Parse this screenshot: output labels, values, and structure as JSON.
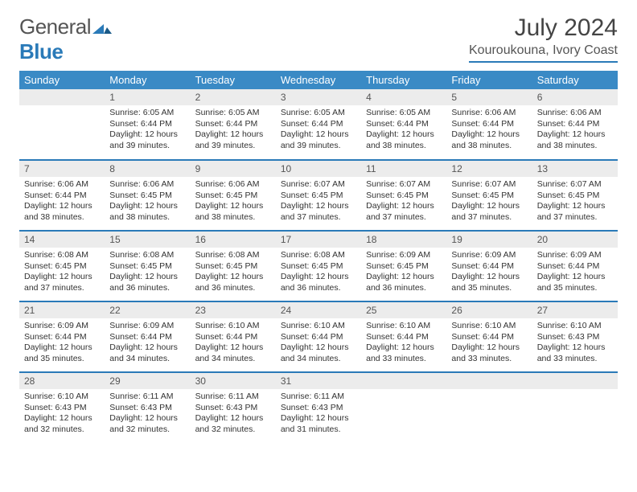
{
  "colors": {
    "header_bg": "#3a8ac5",
    "accent_line": "#2a7ab8",
    "daynum_bg": "#ececec",
    "text": "#333333",
    "muted_text": "#555555",
    "page_bg": "#ffffff"
  },
  "typography": {
    "base_family": "Arial",
    "month_title_pt": 30,
    "location_pt": 16,
    "weekday_pt": 13,
    "body_pt": 10.5
  },
  "logo": {
    "word1": "General",
    "word2": "Blue"
  },
  "title": "July 2024",
  "location": "Kouroukouna, Ivory Coast",
  "weekdays": [
    "Sunday",
    "Monday",
    "Tuesday",
    "Wednesday",
    "Thursday",
    "Friday",
    "Saturday"
  ],
  "weeks": [
    [
      {
        "n": "",
        "sunrise": "",
        "sunset": "",
        "daylight": ""
      },
      {
        "n": "1",
        "sunrise": "6:05 AM",
        "sunset": "6:44 PM",
        "daylight": "12 hours and 39 minutes."
      },
      {
        "n": "2",
        "sunrise": "6:05 AM",
        "sunset": "6:44 PM",
        "daylight": "12 hours and 39 minutes."
      },
      {
        "n": "3",
        "sunrise": "6:05 AM",
        "sunset": "6:44 PM",
        "daylight": "12 hours and 39 minutes."
      },
      {
        "n": "4",
        "sunrise": "6:05 AM",
        "sunset": "6:44 PM",
        "daylight": "12 hours and 38 minutes."
      },
      {
        "n": "5",
        "sunrise": "6:06 AM",
        "sunset": "6:44 PM",
        "daylight": "12 hours and 38 minutes."
      },
      {
        "n": "6",
        "sunrise": "6:06 AM",
        "sunset": "6:44 PM",
        "daylight": "12 hours and 38 minutes."
      }
    ],
    [
      {
        "n": "7",
        "sunrise": "6:06 AM",
        "sunset": "6:44 PM",
        "daylight": "12 hours and 38 minutes."
      },
      {
        "n": "8",
        "sunrise": "6:06 AM",
        "sunset": "6:45 PM",
        "daylight": "12 hours and 38 minutes."
      },
      {
        "n": "9",
        "sunrise": "6:06 AM",
        "sunset": "6:45 PM",
        "daylight": "12 hours and 38 minutes."
      },
      {
        "n": "10",
        "sunrise": "6:07 AM",
        "sunset": "6:45 PM",
        "daylight": "12 hours and 37 minutes."
      },
      {
        "n": "11",
        "sunrise": "6:07 AM",
        "sunset": "6:45 PM",
        "daylight": "12 hours and 37 minutes."
      },
      {
        "n": "12",
        "sunrise": "6:07 AM",
        "sunset": "6:45 PM",
        "daylight": "12 hours and 37 minutes."
      },
      {
        "n": "13",
        "sunrise": "6:07 AM",
        "sunset": "6:45 PM",
        "daylight": "12 hours and 37 minutes."
      }
    ],
    [
      {
        "n": "14",
        "sunrise": "6:08 AM",
        "sunset": "6:45 PM",
        "daylight": "12 hours and 37 minutes."
      },
      {
        "n": "15",
        "sunrise": "6:08 AM",
        "sunset": "6:45 PM",
        "daylight": "12 hours and 36 minutes."
      },
      {
        "n": "16",
        "sunrise": "6:08 AM",
        "sunset": "6:45 PM",
        "daylight": "12 hours and 36 minutes."
      },
      {
        "n": "17",
        "sunrise": "6:08 AM",
        "sunset": "6:45 PM",
        "daylight": "12 hours and 36 minutes."
      },
      {
        "n": "18",
        "sunrise": "6:09 AM",
        "sunset": "6:45 PM",
        "daylight": "12 hours and 36 minutes."
      },
      {
        "n": "19",
        "sunrise": "6:09 AM",
        "sunset": "6:44 PM",
        "daylight": "12 hours and 35 minutes."
      },
      {
        "n": "20",
        "sunrise": "6:09 AM",
        "sunset": "6:44 PM",
        "daylight": "12 hours and 35 minutes."
      }
    ],
    [
      {
        "n": "21",
        "sunrise": "6:09 AM",
        "sunset": "6:44 PM",
        "daylight": "12 hours and 35 minutes."
      },
      {
        "n": "22",
        "sunrise": "6:09 AM",
        "sunset": "6:44 PM",
        "daylight": "12 hours and 34 minutes."
      },
      {
        "n": "23",
        "sunrise": "6:10 AM",
        "sunset": "6:44 PM",
        "daylight": "12 hours and 34 minutes."
      },
      {
        "n": "24",
        "sunrise": "6:10 AM",
        "sunset": "6:44 PM",
        "daylight": "12 hours and 34 minutes."
      },
      {
        "n": "25",
        "sunrise": "6:10 AM",
        "sunset": "6:44 PM",
        "daylight": "12 hours and 33 minutes."
      },
      {
        "n": "26",
        "sunrise": "6:10 AM",
        "sunset": "6:44 PM",
        "daylight": "12 hours and 33 minutes."
      },
      {
        "n": "27",
        "sunrise": "6:10 AM",
        "sunset": "6:43 PM",
        "daylight": "12 hours and 33 minutes."
      }
    ],
    [
      {
        "n": "28",
        "sunrise": "6:10 AM",
        "sunset": "6:43 PM",
        "daylight": "12 hours and 32 minutes."
      },
      {
        "n": "29",
        "sunrise": "6:11 AM",
        "sunset": "6:43 PM",
        "daylight": "12 hours and 32 minutes."
      },
      {
        "n": "30",
        "sunrise": "6:11 AM",
        "sunset": "6:43 PM",
        "daylight": "12 hours and 32 minutes."
      },
      {
        "n": "31",
        "sunrise": "6:11 AM",
        "sunset": "6:43 PM",
        "daylight": "12 hours and 31 minutes."
      },
      {
        "n": "",
        "sunrise": "",
        "sunset": "",
        "daylight": ""
      },
      {
        "n": "",
        "sunrise": "",
        "sunset": "",
        "daylight": ""
      },
      {
        "n": "",
        "sunrise": "",
        "sunset": "",
        "daylight": ""
      }
    ]
  ],
  "labels": {
    "sunrise": "Sunrise:",
    "sunset": "Sunset:",
    "daylight": "Daylight:"
  }
}
